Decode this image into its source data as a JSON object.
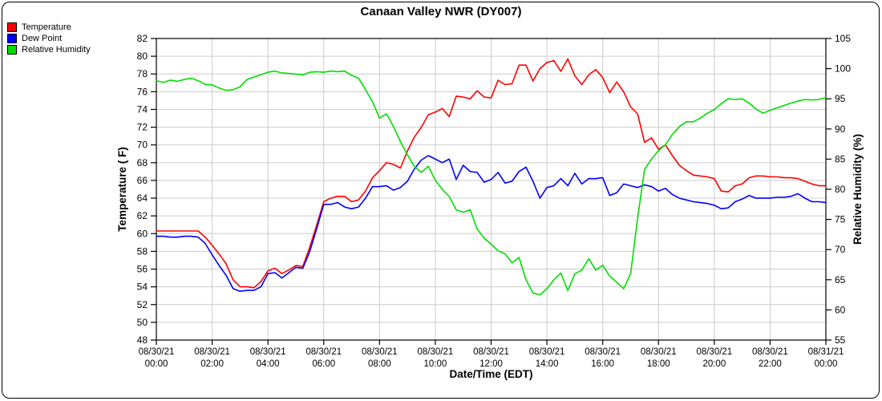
{
  "title": "Canaan Valley NWR (DY007)",
  "legend": [
    {
      "label": "Temperature",
      "color": "#ff0000"
    },
    {
      "label": "Dew Point",
      "color": "#0000ff"
    },
    {
      "label": "Relative Humidity",
      "color": "#00dd00"
    }
  ],
  "colors": {
    "grid": "#cccccc",
    "axis": "#000000",
    "background": "#ffffff"
  },
  "chart_data": {
    "type": "line",
    "title": "Canaan Valley NWR (DY007)",
    "xlabel": "Date/Time (EDT)",
    "x_unit": "hours since 08/30/21 00:00 EDT",
    "grid": true,
    "legend_position": "top-left",
    "x_ticks": {
      "hours": [
        0,
        2,
        4,
        6,
        8,
        10,
        12,
        14,
        16,
        18,
        20,
        22,
        24
      ],
      "labels": [
        [
          "08/30/21",
          "00:00"
        ],
        [
          "08/30/21",
          "02:00"
        ],
        [
          "08/30/21",
          "04:00"
        ],
        [
          "08/30/21",
          "06:00"
        ],
        [
          "08/30/21",
          "08:00"
        ],
        [
          "08/30/21",
          "10:00"
        ],
        [
          "08/30/21",
          "12:00"
        ],
        [
          "08/30/21",
          "14:00"
        ],
        [
          "08/30/21",
          "16:00"
        ],
        [
          "08/30/21",
          "18:00"
        ],
        [
          "08/30/21",
          "20:00"
        ],
        [
          "08/30/21",
          "22:00"
        ],
        [
          "08/31/21",
          "00:00"
        ]
      ]
    },
    "left_axis": {
      "label": "Temperature ( F)",
      "min": 48,
      "max": 82,
      "step": 2
    },
    "right_axis": {
      "label": "Relative Humidity (%)",
      "min": 55,
      "max": 105,
      "step": 5
    },
    "x": [
      0,
      0.25,
      0.5,
      0.75,
      1,
      1.25,
      1.5,
      1.75,
      2,
      2.25,
      2.5,
      2.75,
      3,
      3.25,
      3.5,
      3.75,
      4,
      4.25,
      4.5,
      4.75,
      5,
      5.25,
      5.5,
      5.75,
      6,
      6.25,
      6.5,
      6.75,
      7,
      7.25,
      7.5,
      7.75,
      8,
      8.25,
      8.5,
      8.75,
      9,
      9.25,
      9.5,
      9.75,
      10,
      10.25,
      10.5,
      10.75,
      11,
      11.25,
      11.5,
      11.75,
      12,
      12.25,
      12.5,
      12.75,
      13,
      13.25,
      13.5,
      13.75,
      14,
      14.25,
      14.5,
      14.75,
      15,
      15.25,
      15.5,
      15.75,
      16,
      16.25,
      16.5,
      16.75,
      17,
      17.25,
      17.5,
      17.75,
      18,
      18.25,
      18.5,
      18.75,
      19,
      19.25,
      19.5,
      19.75,
      20,
      20.25,
      20.5,
      20.75,
      21,
      21.25,
      21.5,
      21.75,
      22,
      22.25,
      22.5,
      22.75,
      23,
      23.25,
      23.5,
      23.75,
      24
    ],
    "series": [
      {
        "name": "Temperature",
        "axis": "left",
        "color": "#ff0000",
        "values": [
          60.3,
          60.3,
          60.3,
          60.3,
          60.3,
          60.3,
          60.3,
          59.6,
          58.7,
          57.7,
          56.6,
          54.8,
          54.0,
          54.0,
          53.9,
          54.6,
          55.8,
          56.1,
          55.5,
          55.9,
          56.4,
          56.3,
          58.5,
          61.0,
          63.6,
          64.0,
          64.2,
          64.2,
          63.6,
          63.8,
          64.8,
          66.3,
          67.1,
          68.0,
          67.8,
          67.4,
          69.3,
          70.9,
          72.0,
          73.4,
          73.7,
          74.1,
          73.2,
          75.5,
          75.4,
          75.2,
          76.1,
          75.4,
          75.3,
          77.3,
          76.8,
          76.9,
          79.0,
          79.0,
          77.2,
          78.6,
          79.3,
          79.5,
          78.3,
          79.7,
          77.8,
          76.8,
          77.9,
          78.5,
          77.6,
          75.9,
          77.1,
          76.0,
          74.3,
          73.5,
          70.3,
          70.8,
          69.5,
          70.0,
          68.8,
          67.7,
          67.1,
          66.6,
          66.5,
          66.4,
          66.2,
          64.8,
          64.7,
          65.4,
          65.6,
          66.3,
          66.5,
          66.5,
          66.4,
          66.4,
          66.3,
          66.3,
          66.2,
          65.9,
          65.6,
          65.4,
          65.4
        ]
      },
      {
        "name": "Dew Point",
        "axis": "left",
        "color": "#0000ff",
        "values": [
          59.7,
          59.7,
          59.6,
          59.6,
          59.7,
          59.7,
          59.6,
          58.9,
          57.6,
          56.4,
          55.3,
          53.8,
          53.5,
          53.6,
          53.6,
          54.0,
          55.5,
          55.6,
          55.0,
          55.6,
          56.2,
          56.1,
          58.0,
          60.6,
          63.3,
          63.3,
          63.5,
          63.0,
          62.8,
          63.0,
          64.0,
          65.3,
          65.3,
          65.4,
          64.9,
          65.2,
          65.9,
          67.3,
          68.3,
          68.8,
          68.4,
          68.0,
          68.4,
          66.1,
          67.7,
          67.0,
          66.9,
          65.8,
          66.1,
          66.9,
          65.7,
          65.9,
          67.0,
          67.5,
          65.9,
          64.0,
          65.2,
          65.4,
          66.2,
          65.4,
          66.8,
          65.6,
          66.2,
          66.2,
          66.3,
          64.3,
          64.6,
          65.6,
          65.4,
          65.2,
          65.5,
          65.3,
          64.8,
          65.1,
          64.4,
          64.0,
          63.8,
          63.6,
          63.5,
          63.4,
          63.2,
          62.8,
          62.9,
          63.6,
          63.9,
          64.3,
          64.0,
          64.0,
          64.0,
          64.1,
          64.1,
          64.2,
          64.5,
          64.0,
          63.6,
          63.6,
          63.5
        ]
      },
      {
        "name": "Relative Humidity",
        "axis": "right",
        "color": "#00dd00",
        "values": [
          98,
          97.7,
          98.1,
          97.9,
          98.2,
          98.4,
          98,
          97.4,
          97.3,
          96.8,
          96.4,
          96.5,
          97,
          98.2,
          98.6,
          99,
          99.4,
          99.6,
          99.3,
          99.2,
          99.1,
          99,
          99.4,
          99.5,
          99.4,
          99.6,
          99.5,
          99.6,
          98.9,
          98.4,
          96.5,
          94.5,
          91.8,
          92.5,
          90.4,
          87.9,
          85.7,
          83.8,
          82.8,
          83.8,
          81.5,
          80,
          78.8,
          76.6,
          76.2,
          76.6,
          73.4,
          71.9,
          70.9,
          69.8,
          69.3,
          67.8,
          68.7,
          65,
          62.8,
          62.5,
          63.5,
          65,
          66.1,
          63.2,
          66,
          66.6,
          68.5,
          66.6,
          67.4,
          65.6,
          64.6,
          63.5,
          66,
          75.2,
          83.3,
          85,
          86.4,
          87.4,
          89.1,
          90.4,
          91.2,
          91.2,
          91.8,
          92.6,
          93.2,
          94.2,
          95,
          94.9,
          95,
          94.3,
          93.3,
          92.6,
          93.1,
          93.5,
          93.9,
          94.3,
          94.6,
          94.9,
          94.8,
          94.9,
          95.2
        ]
      }
    ]
  }
}
